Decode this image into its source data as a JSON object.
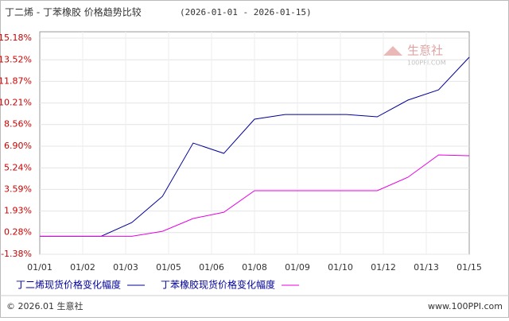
{
  "chart_data": {
    "type": "line",
    "title": "丁二烯 - 丁苯橡胶 价格趋势比较",
    "subtitle": "(2026-01-01 - 2026-01-15)",
    "xtick_labels": [
      "01/01",
      "01/02",
      "01/03",
      "01/05",
      "01/06",
      "01/08",
      "01/09",
      "01/10",
      "01/12",
      "01/13",
      "01/15"
    ],
    "ylim": [
      -1.38,
      15.18
    ],
    "yticks": [
      {
        "value": -1.38,
        "label": "-1.38%"
      },
      {
        "value": 0.28,
        "label": "0.28%"
      },
      {
        "value": 1.93,
        "label": "1.93%"
      },
      {
        "value": 3.59,
        "label": "3.59%"
      },
      {
        "value": 5.24,
        "label": "5.24%"
      },
      {
        "value": 6.9,
        "label": "6.90%"
      },
      {
        "value": 8.56,
        "label": "8.56%"
      },
      {
        "value": 10.21,
        "label": "10.21%"
      },
      {
        "value": 11.87,
        "label": "11.87%"
      },
      {
        "value": 13.52,
        "label": "13.52%"
      },
      {
        "value": 15.18,
        "label": "15.18%"
      }
    ],
    "grid": true,
    "series": [
      {
        "name": "丁二烯现货价格变化幅度",
        "color": "#000099",
        "values": [
          0,
          0,
          0,
          1.05,
          3.06,
          7.14,
          6.35,
          8.97,
          9.33,
          9.33,
          9.33,
          9.15,
          10.43,
          11.22,
          13.72
        ]
      },
      {
        "name": "丁苯橡胶现货价格变化幅度",
        "color": "#e600e6",
        "values": [
          0,
          0,
          0,
          0,
          0.38,
          1.36,
          1.84,
          3.49,
          3.49,
          3.49,
          3.49,
          3.49,
          4.52,
          6.23,
          6.17
        ]
      }
    ]
  },
  "logo": {
    "name": "生意社",
    "url": "100PPI.COM"
  },
  "footer": {
    "left": "© 2026.01 生意社",
    "right": "www.100PPI.com"
  }
}
